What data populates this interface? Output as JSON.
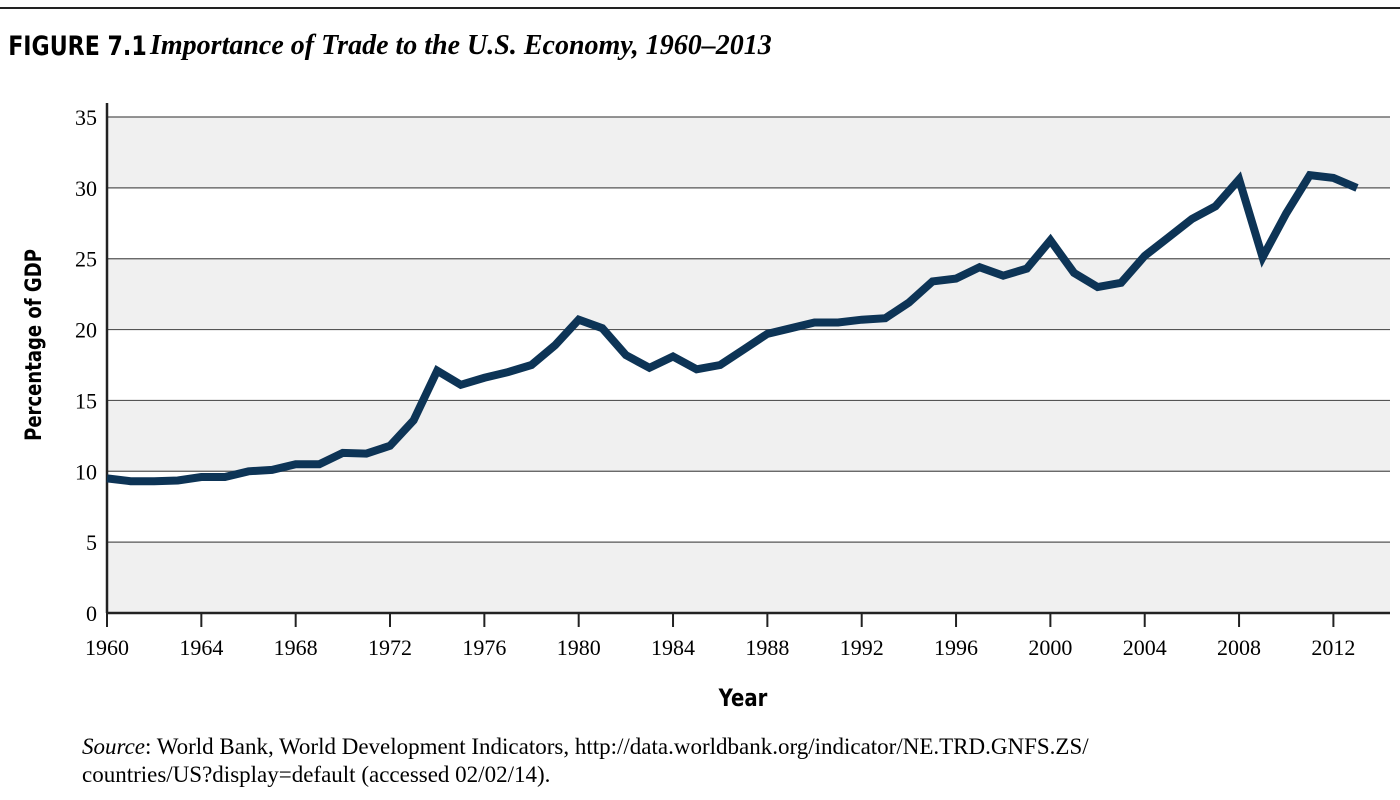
{
  "chart_data": {
    "type": "line",
    "figure_label": "FIGURE 7.1",
    "title": "Importance of Trade to the U.S. Economy, 1960–2013",
    "x_label": "Year",
    "y_label": "Percentage of GDP",
    "x": [
      1960,
      1961,
      1962,
      1963,
      1964,
      1965,
      1966,
      1967,
      1968,
      1969,
      1970,
      1971,
      1972,
      1973,
      1974,
      1975,
      1976,
      1977,
      1978,
      1979,
      1980,
      1981,
      1982,
      1983,
      1984,
      1985,
      1986,
      1987,
      1988,
      1989,
      1990,
      1991,
      1992,
      1993,
      1994,
      1995,
      1996,
      1997,
      1998,
      1999,
      2000,
      2001,
      2002,
      2003,
      2004,
      2005,
      2006,
      2007,
      2008,
      2009,
      2010,
      2011,
      2012,
      2013
    ],
    "values": [
      9.5,
      9.3,
      9.3,
      9.35,
      9.6,
      9.6,
      10.0,
      10.1,
      10.5,
      10.5,
      11.3,
      11.25,
      11.8,
      13.6,
      17.1,
      16.1,
      16.6,
      17.0,
      17.5,
      18.9,
      20.7,
      20.1,
      18.2,
      17.3,
      18.1,
      17.2,
      17.5,
      18.6,
      19.7,
      20.1,
      20.5,
      20.5,
      20.7,
      20.8,
      21.9,
      23.4,
      23.6,
      24.4,
      23.8,
      24.3,
      26.3,
      24.0,
      23.0,
      23.3,
      25.2,
      26.5,
      27.8,
      28.7,
      30.6,
      25.1,
      28.2,
      30.9,
      30.7,
      30.0
    ],
    "color": "#0d3456",
    "xlim": [
      1960,
      2014.4
    ],
    "xticks": [
      1960,
      1964,
      1968,
      1972,
      1976,
      1980,
      1984,
      1988,
      1992,
      1996,
      2000,
      2004,
      2008,
      2012
    ],
    "ylim": [
      0,
      35
    ],
    "yticks": [
      0,
      5,
      10,
      15,
      20,
      25,
      30,
      35
    ],
    "grid": true,
    "bands": true,
    "source_label": "Source",
    "source_lines": [
      ": World Bank, World Development Indicators, http://data.worldbank.org/indicator/NE.TRD.GNFS.ZS/",
      "countries/US?display=default (accessed 02/02/14)."
    ]
  }
}
